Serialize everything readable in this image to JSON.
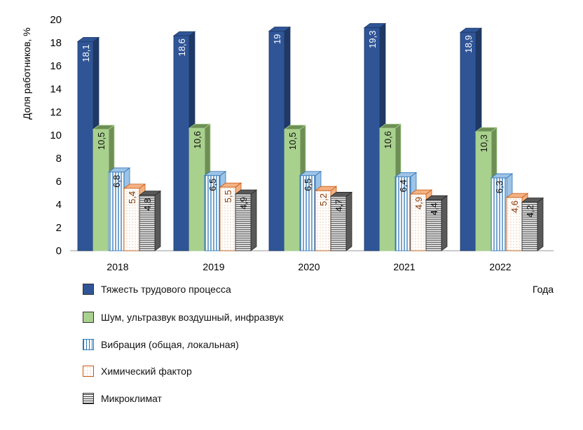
{
  "chart_data": {
    "type": "bar",
    "categories": [
      "2018",
      "2019",
      "2020",
      "2021",
      "2022"
    ],
    "ylabel": "Доля работников, %",
    "xlabel": "Года",
    "ylim": [
      0,
      20
    ],
    "yticks": [
      0,
      2,
      4,
      6,
      8,
      10,
      12,
      14,
      16,
      18,
      20
    ],
    "grid": false,
    "legend": "bottom",
    "series": [
      {
        "name": "Тяжесть трудового процесса",
        "values": [
          18.1,
          18.6,
          19,
          19.3,
          18.9
        ],
        "labels": [
          "18,1",
          "18,6",
          "19",
          "19,3",
          "18,9"
        ],
        "color": "#2f5597",
        "pattern": "solid"
      },
      {
        "name": "Шум, ультразвук воздушный, инфразвук",
        "values": [
          10.5,
          10.6,
          10.5,
          10.6,
          10.3
        ],
        "labels": [
          "10,5",
          "10,6",
          "10,5",
          "10,6",
          "10,3"
        ],
        "color": "#a9d18e",
        "pattern": "solid"
      },
      {
        "name": "Вибрация (общая, локальная)",
        "values": [
          6.8,
          6.5,
          6.5,
          6.4,
          6.3
        ],
        "labels": [
          "6,8",
          "6,5",
          "6,5",
          "6,4",
          "6,3"
        ],
        "color": "#2e75b6",
        "pattern": "vertical-lines"
      },
      {
        "name": "Химический фактор",
        "values": [
          5.4,
          5.5,
          5.2,
          4.9,
          4.6
        ],
        "labels": [
          "5,4",
          "5,5",
          "5,2",
          "4,9",
          "4,6"
        ],
        "color": "#c55a11",
        "pattern": "dots"
      },
      {
        "name": "Микроклимат",
        "values": [
          4.8,
          4.9,
          4.7,
          4.4,
          4.2
        ],
        "labels": [
          "4,8",
          "4,9",
          "4,7",
          "4,4",
          "4,2"
        ],
        "color": "#262626",
        "pattern": "horizontal-lines"
      }
    ]
  }
}
